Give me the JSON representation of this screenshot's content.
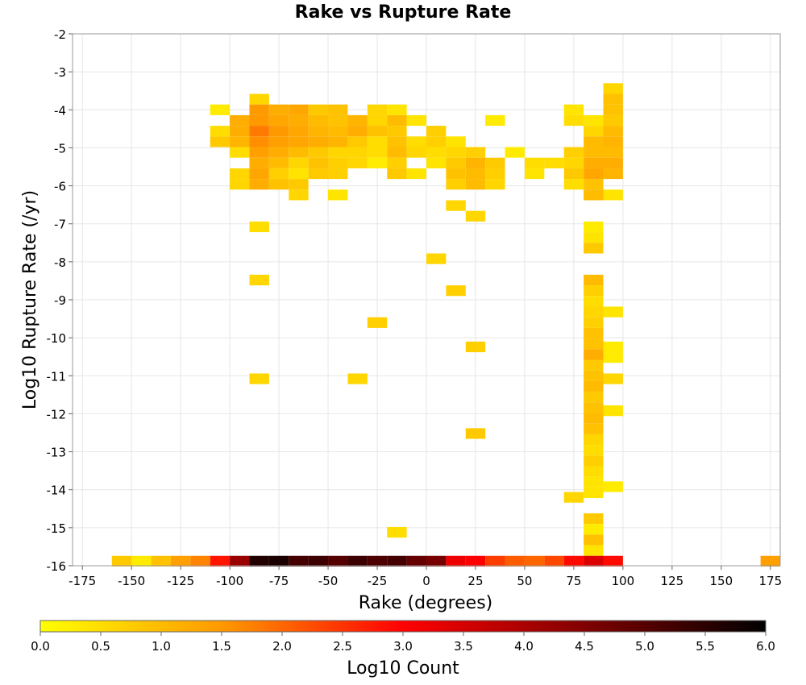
{
  "chart_data": {
    "type": "heatmap",
    "title": "Rake vs Rupture Rate",
    "xlabel": "Rake (degrees)",
    "ylabel": "Log10 Rupture Rate (/yr)",
    "xlim": [
      -180,
      180
    ],
    "ylim": [
      -16,
      -2
    ],
    "x_ticks": [
      -175,
      -150,
      -125,
      -100,
      -75,
      -50,
      -25,
      0,
      25,
      50,
      75,
      100,
      125,
      150,
      175
    ],
    "y_ticks": [
      -2,
      -3,
      -4,
      -5,
      -6,
      -7,
      -8,
      -9,
      -10,
      -11,
      -12,
      -13,
      -14,
      -15,
      -16
    ],
    "bin_width_x": 10,
    "bin_height_y": 0.28,
    "grid": true,
    "colorbar": {
      "label": "Log10 Count",
      "range": [
        0,
        6
      ],
      "ticks": [
        "0.0",
        "0.5",
        "1.0",
        "1.5",
        "2.0",
        "2.5",
        "3.0",
        "3.5",
        "4.0",
        "4.5",
        "5.0",
        "5.5",
        "6.0"
      ],
      "stops": [
        "#ffff00",
        "#ff9900",
        "#ff0000",
        "#800000",
        "#000000"
      ]
    },
    "cells": [
      [
        -105,
        -4.0,
        0.3
      ],
      [
        -95,
        -4.28,
        1.2
      ],
      [
        -85,
        -3.72,
        0.6
      ],
      [
        -85,
        -4.0,
        1.5
      ],
      [
        -75,
        -4.0,
        1.2
      ],
      [
        -65,
        -4.0,
        1.3
      ],
      [
        -55,
        -4.0,
        0.8
      ],
      [
        -45,
        -4.0,
        0.9
      ],
      [
        -25,
        -4.0,
        0.6
      ],
      [
        -15,
        -4.0,
        0.4
      ],
      [
        95,
        -3.44,
        0.6
      ],
      [
        95,
        -3.72,
        0.9
      ],
      [
        95,
        -4.0,
        0.9
      ],
      [
        75,
        -4.0,
        0.4
      ],
      [
        -105,
        -4.56,
        0.5
      ],
      [
        -95,
        -4.56,
        1.2
      ],
      [
        -85,
        -4.28,
        1.5
      ],
      [
        -85,
        -4.56,
        1.8
      ],
      [
        -75,
        -4.28,
        1.3
      ],
      [
        -75,
        -4.56,
        1.5
      ],
      [
        -65,
        -4.28,
        1.2
      ],
      [
        -65,
        -4.56,
        1.3
      ],
      [
        -55,
        -4.28,
        1.0
      ],
      [
        -55,
        -4.56,
        1.1
      ],
      [
        -45,
        -4.28,
        0.9
      ],
      [
        -45,
        -4.56,
        1.0
      ],
      [
        -35,
        -4.28,
        1.1
      ],
      [
        -35,
        -4.56,
        1.2
      ],
      [
        -25,
        -4.28,
        0.6
      ],
      [
        -25,
        -4.56,
        0.9
      ],
      [
        -15,
        -4.28,
        1.0
      ],
      [
        -15,
        -4.56,
        0.8
      ],
      [
        -5,
        -4.28,
        0.4
      ],
      [
        5,
        -4.56,
        0.7
      ],
      [
        35,
        -4.28,
        0.3
      ],
      [
        75,
        -4.28,
        0.5
      ],
      [
        85,
        -4.28,
        0.4
      ],
      [
        85,
        -4.56,
        0.6
      ],
      [
        95,
        -4.28,
        0.8
      ],
      [
        95,
        -4.56,
        1.0
      ],
      [
        -105,
        -4.84,
        0.8
      ],
      [
        -95,
        -4.84,
        1.1
      ],
      [
        -95,
        -5.12,
        0.5
      ],
      [
        -85,
        -4.84,
        1.6
      ],
      [
        -85,
        -5.12,
        1.4
      ],
      [
        -75,
        -4.84,
        1.4
      ],
      [
        -75,
        -5.12,
        1.2
      ],
      [
        -65,
        -4.84,
        1.3
      ],
      [
        -65,
        -5.12,
        1.0
      ],
      [
        -55,
        -4.84,
        1.2
      ],
      [
        -55,
        -5.12,
        0.8
      ],
      [
        -45,
        -4.84,
        1.1
      ],
      [
        -45,
        -5.12,
        0.6
      ],
      [
        -35,
        -4.84,
        0.8
      ],
      [
        -35,
        -5.12,
        0.6
      ],
      [
        -25,
        -4.84,
        0.5
      ],
      [
        -25,
        -5.12,
        0.5
      ],
      [
        -15,
        -4.84,
        0.9
      ],
      [
        -15,
        -5.12,
        1.0
      ],
      [
        -5,
        -4.84,
        0.5
      ],
      [
        -5,
        -5.12,
        0.6
      ],
      [
        5,
        -4.84,
        0.7
      ],
      [
        5,
        -5.12,
        0.5
      ],
      [
        15,
        -4.84,
        0.4
      ],
      [
        15,
        -5.12,
        0.6
      ],
      [
        25,
        -5.12,
        0.7
      ],
      [
        45,
        -5.12,
        0.3
      ],
      [
        75,
        -5.12,
        0.7
      ],
      [
        85,
        -4.84,
        1.0
      ],
      [
        85,
        -5.12,
        1.0
      ],
      [
        95,
        -4.84,
        1.1
      ],
      [
        95,
        -5.12,
        1.0
      ],
      [
        -95,
        -5.68,
        0.6
      ],
      [
        -95,
        -5.96,
        0.6
      ],
      [
        -85,
        -5.4,
        1.2
      ],
      [
        -85,
        -5.68,
        1.3
      ],
      [
        -85,
        -5.96,
        1.2
      ],
      [
        -75,
        -5.4,
        1.0
      ],
      [
        -75,
        -5.68,
        0.7
      ],
      [
        -75,
        -5.96,
        0.9
      ],
      [
        -65,
        -5.4,
        0.6
      ],
      [
        -65,
        -5.68,
        0.4
      ],
      [
        -65,
        -5.96,
        0.8
      ],
      [
        -65,
        -6.24,
        0.6
      ],
      [
        -55,
        -5.4,
        0.9
      ],
      [
        -55,
        -5.68,
        0.8
      ],
      [
        -45,
        -5.4,
        0.7
      ],
      [
        -45,
        -5.68,
        0.7
      ],
      [
        -45,
        -6.24,
        0.4
      ],
      [
        -35,
        -5.4,
        0.6
      ],
      [
        -25,
        -5.4,
        0.3
      ],
      [
        -15,
        -5.4,
        0.7
      ],
      [
        -15,
        -5.68,
        0.8
      ],
      [
        -5,
        -5.68,
        0.4
      ],
      [
        5,
        -5.4,
        0.4
      ],
      [
        15,
        -5.4,
        0.8
      ],
      [
        15,
        -5.68,
        0.9
      ],
      [
        15,
        -5.96,
        0.7
      ],
      [
        25,
        -5.4,
        1.1
      ],
      [
        25,
        -5.68,
        1.0
      ],
      [
        25,
        -5.96,
        1.0
      ],
      [
        35,
        -5.4,
        0.8
      ],
      [
        35,
        -5.68,
        0.7
      ],
      [
        35,
        -5.96,
        0.6
      ],
      [
        55,
        -5.4,
        0.5
      ],
      [
        55,
        -5.68,
        0.4
      ],
      [
        65,
        -5.4,
        0.5
      ],
      [
        75,
        -5.4,
        0.6
      ],
      [
        75,
        -5.68,
        0.8
      ],
      [
        75,
        -5.96,
        0.5
      ],
      [
        85,
        -5.4,
        1.2
      ],
      [
        85,
        -5.68,
        1.3
      ],
      [
        85,
        -5.96,
        0.9
      ],
      [
        85,
        -6.24,
        1.0
      ],
      [
        95,
        -5.4,
        1.2
      ],
      [
        95,
        -5.68,
        1.1
      ],
      [
        95,
        -6.24,
        0.4
      ],
      [
        15,
        -6.52,
        0.6
      ],
      [
        25,
        -6.8,
        0.6
      ],
      [
        -85,
        -7.08,
        0.5
      ],
      [
        85,
        -7.08,
        0.3
      ],
      [
        85,
        -7.36,
        0.4
      ],
      [
        85,
        -7.64,
        0.8
      ],
      [
        5,
        -7.92,
        0.6
      ],
      [
        -85,
        -8.48,
        0.6
      ],
      [
        85,
        -8.48,
        1.0
      ],
      [
        85,
        -8.76,
        0.7
      ],
      [
        85,
        -9.04,
        0.5
      ],
      [
        15,
        -8.76,
        0.7
      ],
      [
        85,
        -9.32,
        0.6
      ],
      [
        95,
        -9.32,
        0.4
      ],
      [
        -25,
        -9.6,
        0.7
      ],
      [
        85,
        -9.6,
        0.7
      ],
      [
        85,
        -9.88,
        0.9
      ],
      [
        85,
        -10.16,
        0.9
      ],
      [
        25,
        -10.24,
        0.7
      ],
      [
        85,
        -10.44,
        1.2
      ],
      [
        95,
        -10.24,
        0.3
      ],
      [
        95,
        -10.52,
        0.3
      ],
      [
        85,
        -10.72,
        0.8
      ],
      [
        -85,
        -11.08,
        0.6
      ],
      [
        -35,
        -11.08,
        0.6
      ],
      [
        85,
        -11.0,
        0.9
      ],
      [
        95,
        -11.08,
        0.6
      ],
      [
        85,
        -11.28,
        1.0
      ],
      [
        85,
        -11.56,
        0.8
      ],
      [
        85,
        -11.84,
        0.9
      ],
      [
        95,
        -11.92,
        0.4
      ],
      [
        85,
        -12.12,
        1.0
      ],
      [
        85,
        -12.4,
        0.9
      ],
      [
        25,
        -12.52,
        0.8
      ],
      [
        85,
        -12.68,
        0.6
      ],
      [
        85,
        -12.96,
        0.5
      ],
      [
        85,
        -13.24,
        0.7
      ],
      [
        85,
        -13.52,
        0.5
      ],
      [
        85,
        -13.8,
        0.4
      ],
      [
        95,
        -13.92,
        0.3
      ],
      [
        75,
        -14.2,
        0.6
      ],
      [
        85,
        -14.08,
        0.4
      ],
      [
        85,
        -14.76,
        0.8
      ],
      [
        -15,
        -15.12,
        0.5
      ],
      [
        85,
        -15.04,
        0.3
      ],
      [
        85,
        -15.32,
        0.9
      ],
      [
        85,
        -15.6,
        0.4
      ],
      [
        -155,
        -15.88,
        0.8
      ],
      [
        -145,
        -15.88,
        0.3
      ],
      [
        -135,
        -15.88,
        0.9
      ],
      [
        -125,
        -15.88,
        1.4
      ],
      [
        -115,
        -15.88,
        1.7
      ],
      [
        -105,
        -15.88,
        2.8
      ],
      [
        -95,
        -15.88,
        4.2
      ],
      [
        -85,
        -15.88,
        5.6
      ],
      [
        -75,
        -15.88,
        5.7
      ],
      [
        -65,
        -15.88,
        5.2
      ],
      [
        -55,
        -15.88,
        5.3
      ],
      [
        -45,
        -15.88,
        5.0
      ],
      [
        -35,
        -15.88,
        5.3
      ],
      [
        -25,
        -15.88,
        5.1
      ],
      [
        -15,
        -15.88,
        5.2
      ],
      [
        -5,
        -15.88,
        4.8
      ],
      [
        5,
        -15.88,
        4.6
      ],
      [
        15,
        -15.88,
        3.2
      ],
      [
        25,
        -15.88,
        3.0
      ],
      [
        35,
        -15.88,
        2.4
      ],
      [
        45,
        -15.88,
        2.1
      ],
      [
        55,
        -15.88,
        2.0
      ],
      [
        65,
        -15.88,
        2.3
      ],
      [
        75,
        -15.88,
        2.9
      ],
      [
        85,
        -15.88,
        3.4
      ],
      [
        95,
        -15.88,
        2.9
      ],
      [
        175,
        -15.88,
        1.4
      ]
    ]
  }
}
